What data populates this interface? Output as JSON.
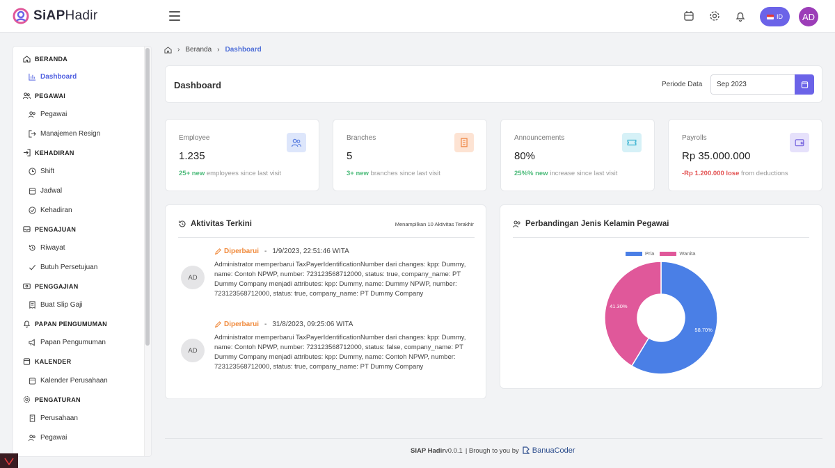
{
  "header": {
    "logo_bold": "SiAP",
    "logo_light": "Hadir",
    "lang_label": "ID",
    "avatar_initials": "AD"
  },
  "sidebar": {
    "sections": [
      {
        "label": "BERANDA",
        "icon": "home-icon"
      },
      {
        "label": "PEGAWAI",
        "icon": "users-icon"
      },
      {
        "label": "KEHADIRAN",
        "icon": "login-icon"
      },
      {
        "label": "PENGAJUAN",
        "icon": "inbox-icon"
      },
      {
        "label": "PENGGAJIAN",
        "icon": "money-icon"
      },
      {
        "label": "PAPAN PENGUMUMAN",
        "icon": "bell-icon"
      },
      {
        "label": "KALENDER",
        "icon": "calendar-icon"
      },
      {
        "label": "PENGATURAN",
        "icon": "gear-icon"
      }
    ],
    "items": [
      {
        "label": "Dashboard",
        "icon": "chart-icon"
      },
      {
        "label": "Pegawai",
        "icon": "users-icon"
      },
      {
        "label": "Manajemen Resign",
        "icon": "logout-icon"
      },
      {
        "label": "Shift",
        "icon": "clock-icon"
      },
      {
        "label": "Jadwal",
        "icon": "calendar-icon"
      },
      {
        "label": "Kehadiran",
        "icon": "check-circle-icon"
      },
      {
        "label": "Riwayat",
        "icon": "history-icon"
      },
      {
        "label": "Butuh Persetujuan",
        "icon": "check-icon"
      },
      {
        "label": "Buat Slip Gaji",
        "icon": "receipt-icon"
      },
      {
        "label": "Papan Pengumuman",
        "icon": "megaphone-icon"
      },
      {
        "label": "Kalender Perusahaan",
        "icon": "calendar-icon"
      },
      {
        "label": "Perusahaan",
        "icon": "building-icon"
      },
      {
        "label": "Pegawai",
        "icon": "users-icon"
      }
    ]
  },
  "breadcrumb": {
    "home": "Beranda",
    "current": "Dashboard"
  },
  "dashboard": {
    "title": "Dashboard",
    "periode_label": "Periode Data",
    "periode_value": "Sep 2023"
  },
  "stats": [
    {
      "label": "Employee",
      "value": "1.235",
      "note_hl": "25+ new",
      "note": " employees since last visit",
      "hl_color": "g",
      "icon": "users-icon",
      "icon_bg": "#dde6fb",
      "icon_color": "#5b7fe0"
    },
    {
      "label": "Branches",
      "value": "5",
      "note_hl": "3+ new",
      "note": " branches since last visit",
      "hl_color": "g",
      "icon": "building-icon",
      "icon_bg": "#fde3d3",
      "icon_color": "#ef8a4a"
    },
    {
      "label": "Announcements",
      "value": "80%",
      "note_hl": "25%% new",
      "note": " increase since last visit",
      "hl_color": "g",
      "icon": "ticket-icon",
      "icon_bg": "#d6f1f7",
      "icon_color": "#3bb3d1"
    },
    {
      "label": "Payrolls",
      "value": "Rp 35.000.000",
      "note_hl": "-Rp 1.200.000 lose",
      "note": " from deductions",
      "hl_color": "r",
      "icon": "wallet-icon",
      "icon_bg": "#e6e1fb",
      "icon_color": "#7c6ae0"
    }
  ],
  "activity": {
    "title": "Aktivitas Terkini",
    "subtitle": "Menampilkan 10 Aktivitas Terakhir",
    "items": [
      {
        "avatar": "AD",
        "tag": "Diperbarui",
        "sep": "-",
        "time": "1/9/2023, 22:51:46 WITA",
        "body": "Administrator memperbarui TaxPayerIdentificationNumber dari changes: kpp: Dummy, name: Contoh NPWP, number: 723123568712000, status: true, company_name: PT Dummy Company menjadi attributes: kpp: Dummy, name: Dummy NPWP, number: 723123568712000, status: true, company_name: PT Dummy Company"
      },
      {
        "avatar": "AD",
        "tag": "Diperbarui",
        "sep": "-",
        "time": "31/8/2023, 09:25:06 WITA",
        "body": "Administrator memperbarui TaxPayerIdentificationNumber dari changes: kpp: Dummy, name: Contoh NPWP, number: 723123568712000, status: false, company_name: PT Dummy Company menjadi attributes: kpp: Dummy, name: Contoh NPWP, number: 723123568712000, status: true, company_name: PT Dummy Company"
      }
    ]
  },
  "gender": {
    "title": "Perbandingan Jenis Kelamin Pegawai"
  },
  "chart_data": {
    "type": "pie",
    "donut": true,
    "categories": [
      "Pria",
      "Wanita"
    ],
    "values": [
      58.7,
      41.3
    ],
    "labels": [
      "58.70%",
      "41.30%"
    ],
    "colors": [
      "#4a7fe6",
      "#e0589a"
    ],
    "legend": "top"
  },
  "footer": {
    "app": "SIAP Hadir",
    "version": "v0.0.1",
    "credit": "| Brough to you by",
    "brand": "BanuaCoder"
  },
  "colors": {
    "accent": "#6b63e8",
    "link": "#4f5fe0",
    "updated": "#f08a3c",
    "positive": "#4cbb7a",
    "negative": "#e35454"
  }
}
